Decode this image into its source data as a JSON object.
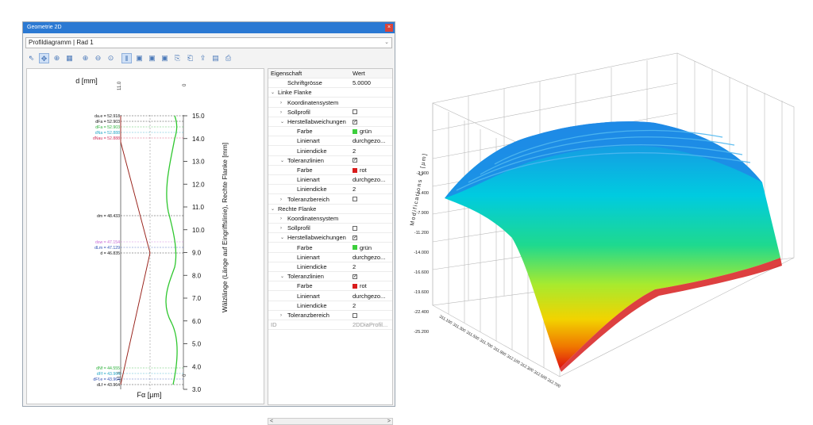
{
  "window": {
    "title": "Geometrie 2D",
    "close_label": "×"
  },
  "combo": {
    "value": "Profildiagramm | Rad 1"
  },
  "toolbar": {
    "icons": [
      "pointer-icon",
      "move-icon",
      "zoom-window-icon",
      "table-icon",
      "zoom-in-icon",
      "zoom-out-icon",
      "zoom-fit-icon",
      "mirror-axis-icon",
      "view-1-icon",
      "view-2-icon",
      "view-3-icon",
      "copy-icon",
      "paste-icon",
      "export-icon",
      "save-icon",
      "print-icon"
    ]
  },
  "plot": {
    "title": "d [mm]",
    "xlabel": "Fα [µm]",
    "ylabel": "Wälzlänge (Länge auf Eingriffslinie), Rechte Flanke [mm]",
    "left_axis_top": "11.0",
    "left_axis_bottom": "-11.0",
    "right_axis_top": "0",
    "right_axis_bottom": "0",
    "y_ticks": [
      "15.0",
      "14.0",
      "13.0",
      "12.0",
      "11.0",
      "10.0",
      "9.0",
      "8.0",
      "7.0",
      "6.0",
      "5.0",
      "4.0",
      "3.0"
    ],
    "labels": [
      {
        "text": "da.e = 52.918",
        "color": "#111111"
      },
      {
        "text": "dFa = 52.903",
        "color": "#111111"
      },
      {
        "text": "dFa = 52.903",
        "color": "#2fb33d"
      },
      {
        "text": "dNa = 52.888",
        "color": "#27a8c7"
      },
      {
        "text": "dNau = 52.888",
        "color": "#d0305a"
      },
      {
        "text": "dm = 48.433",
        "color": "#111111"
      },
      {
        "text": "dsw = 47.154",
        "color": "#c86bd6"
      },
      {
        "text": "dLm = 47.129",
        "color": "#2e4fb3"
      },
      {
        "text": "d = 46.835",
        "color": "#111111"
      },
      {
        "text": "dNf = 44.555",
        "color": "#2fb33d"
      },
      {
        "text": "dFf = 43.964",
        "color": "#27a8c7"
      },
      {
        "text": "dFf.e = 43.964",
        "color": "#2e4fb3"
      },
      {
        "text": "dLf = 43.964",
        "color": "#111111"
      }
    ]
  },
  "property_grid": {
    "header": {
      "key": "Eigenschaft",
      "value": "Wert"
    },
    "rows": [
      {
        "key": "Schriftgrösse",
        "value": "5.0000",
        "level": 1,
        "type": "text"
      },
      {
        "key": "Linke Flanke",
        "value": "",
        "level": 0,
        "type": "group",
        "twisty": "expanded"
      },
      {
        "key": "Koordinatensystem",
        "value": "",
        "level": 1,
        "type": "group",
        "twisty": "collapsed"
      },
      {
        "key": "Sollprofil",
        "value": "",
        "level": 1,
        "type": "checkbox",
        "checked": false,
        "twisty": "collapsed"
      },
      {
        "key": "Herstellabweichungen",
        "value": "",
        "level": 1,
        "type": "checkbox",
        "checked": true,
        "twisty": "expanded"
      },
      {
        "key": "Farbe",
        "value": "grün",
        "level": 2,
        "type": "color",
        "color": "#3ccf3c"
      },
      {
        "key": "Linienart",
        "value": "durchgezo...",
        "level": 2,
        "type": "text"
      },
      {
        "key": "Liniendicke",
        "value": "2",
        "level": 2,
        "type": "text"
      },
      {
        "key": "Toleranzlinien",
        "value": "",
        "level": 1,
        "type": "checkbox",
        "checked": true,
        "twisty": "expanded"
      },
      {
        "key": "Farbe",
        "value": "rot",
        "level": 2,
        "type": "color",
        "color": "#d91b1b"
      },
      {
        "key": "Linienart",
        "value": "durchgezo...",
        "level": 2,
        "type": "text"
      },
      {
        "key": "Liniendicke",
        "value": "2",
        "level": 2,
        "type": "text"
      },
      {
        "key": "Toleranzbereich",
        "value": "",
        "level": 1,
        "type": "checkbox",
        "checked": false,
        "twisty": "collapsed"
      },
      {
        "key": "Rechte Flanke",
        "value": "",
        "level": 0,
        "type": "group",
        "twisty": "expanded"
      },
      {
        "key": "Koordinatensystem",
        "value": "",
        "level": 1,
        "type": "group",
        "twisty": "collapsed"
      },
      {
        "key": "Sollprofil",
        "value": "",
        "level": 1,
        "type": "checkbox",
        "checked": false,
        "twisty": "collapsed"
      },
      {
        "key": "Herstellabweichungen",
        "value": "",
        "level": 1,
        "type": "checkbox",
        "checked": true,
        "twisty": "expanded"
      },
      {
        "key": "Farbe",
        "value": "grün",
        "level": 2,
        "type": "color",
        "color": "#3ccf3c"
      },
      {
        "key": "Linienart",
        "value": "durchgezo...",
        "level": 2,
        "type": "text"
      },
      {
        "key": "Liniendicke",
        "value": "2",
        "level": 2,
        "type": "text"
      },
      {
        "key": "Toleranzlinien",
        "value": "",
        "level": 1,
        "type": "checkbox",
        "checked": true,
        "twisty": "expanded"
      },
      {
        "key": "Farbe",
        "value": "rot",
        "level": 2,
        "type": "color",
        "color": "#d91b1b"
      },
      {
        "key": "Linienart",
        "value": "durchgezo...",
        "level": 2,
        "type": "text"
      },
      {
        "key": "Liniendicke",
        "value": "2",
        "level": 2,
        "type": "text"
      },
      {
        "key": "Toleranzbereich",
        "value": "",
        "level": 1,
        "type": "checkbox",
        "checked": false,
        "twisty": "collapsed"
      },
      {
        "key": "ID",
        "value": "2DDiaProfil...",
        "level": 0,
        "type": "disabled"
      }
    ]
  },
  "scrollbar": {
    "left": "<",
    "right": ">"
  },
  "surface3d": {
    "zlabel": "Modifications C [µm]",
    "z_ticks": [
      "-2.900",
      "-5.400",
      "-7.900",
      "-11.200",
      "-14.000",
      "-16.600",
      "-19.600",
      "-22.400",
      "-25.200"
    ],
    "base_ticks": [
      "311.100",
      "311.300",
      "311.500",
      "311.700",
      "311.900",
      "312.100",
      "312.300",
      "312.500",
      "312.700"
    ],
    "palette": [
      "#1e8fe6",
      "#00cfe0",
      "#22d98a",
      "#aeea2a",
      "#f5d000",
      "#f07a00",
      "#e01010"
    ]
  }
}
